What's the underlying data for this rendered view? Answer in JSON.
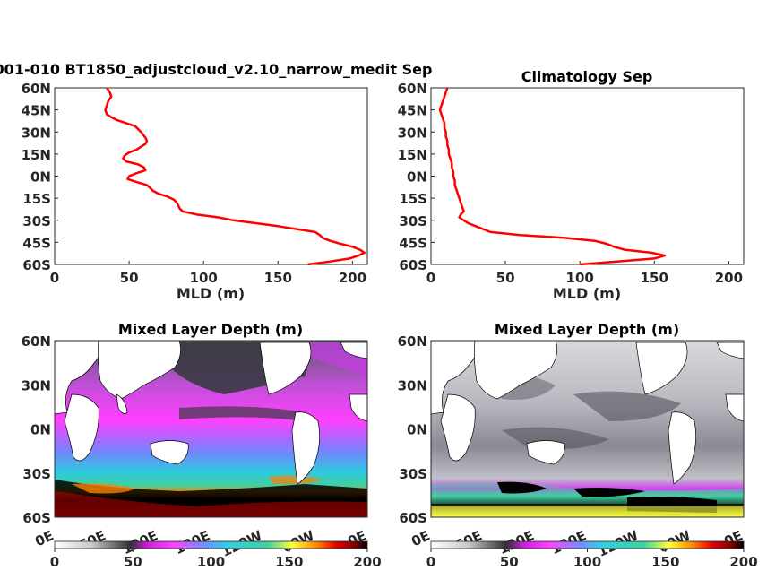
{
  "chart_data": [
    {
      "type": "line",
      "title": "001-010 BT1850_adjustcloud_v2.10_narrow_medit Sep",
      "xlabel": "MLD (m)",
      "ylabel": "",
      "xlim": [
        0,
        210
      ],
      "ylim": [
        -60,
        60
      ],
      "x_ticks": [
        "0",
        "50",
        "100",
        "150",
        "200"
      ],
      "y_ticks": [
        "60N",
        "45N",
        "30N",
        "15N",
        "0N",
        "15S",
        "30S",
        "45S",
        "60S"
      ],
      "line_color": "#ff0000",
      "series": [
        {
          "y": [
            60,
            57,
            54,
            51,
            48,
            45,
            42,
            40,
            38,
            36,
            34,
            30,
            26,
            24,
            22,
            20,
            18,
            16,
            14,
            12,
            10,
            8,
            6,
            4,
            2,
            0,
            -2,
            -4,
            -6,
            -8,
            -10,
            -12,
            -14,
            -16,
            -18,
            -20,
            -22,
            -24,
            -26,
            -28,
            -30,
            -34,
            -38,
            -40,
            -42,
            -44,
            -46,
            -48,
            -50,
            -52,
            -54,
            -56,
            -58,
            -60
          ],
          "x": [
            35,
            37,
            38,
            36,
            35,
            34,
            35,
            38,
            42,
            48,
            54,
            58,
            61,
            62,
            61,
            58,
            55,
            50,
            47,
            46,
            48,
            56,
            60,
            61,
            55,
            50,
            49,
            55,
            62,
            64,
            66,
            70,
            76,
            80,
            82,
            83,
            84,
            86,
            95,
            110,
            120,
            150,
            175,
            178,
            180,
            185,
            192,
            200,
            205,
            208,
            204,
            198,
            185,
            170
          ]
        }
      ]
    },
    {
      "type": "line",
      "title": "Climatology Sep",
      "xlabel": "MLD (m)",
      "ylabel": "",
      "xlim": [
        0,
        210
      ],
      "ylim": [
        -60,
        60
      ],
      "x_ticks": [
        "0",
        "50",
        "100",
        "150",
        "200"
      ],
      "y_ticks": [
        "60N",
        "45N",
        "30N",
        "15N",
        "0N",
        "15S",
        "30S",
        "45S",
        "60S"
      ],
      "line_color": "#ff0000",
      "series": [
        {
          "y": [
            60,
            57,
            54,
            51,
            48,
            45,
            42,
            39,
            36,
            33,
            30,
            27,
            24,
            21,
            18,
            15,
            12,
            9,
            6,
            3,
            0,
            -3,
            -6,
            -9,
            -12,
            -15,
            -18,
            -21,
            -24,
            -26,
            -28,
            -30,
            -32,
            -34,
            -36,
            -38,
            -40,
            -42,
            -44,
            -46,
            -48,
            -50,
            -52,
            -54,
            -56,
            -58,
            -60
          ],
          "x": [
            11,
            10,
            9,
            8,
            7,
            6,
            7,
            8,
            9,
            9,
            10,
            10,
            11,
            11,
            12,
            12,
            13,
            14,
            14,
            15,
            15,
            16,
            16,
            17,
            18,
            19,
            20,
            21,
            22,
            20,
            19,
            22,
            25,
            30,
            35,
            40,
            60,
            90,
            110,
            118,
            123,
            130,
            148,
            157,
            150,
            125,
            100
          ]
        }
      ]
    },
    {
      "type": "heatmap",
      "title": "Mixed Layer Depth (m)",
      "x_ticks": [
        "0E",
        "60E",
        "120E",
        "180E",
        "120W",
        "60W",
        "0E"
      ],
      "y_ticks": [
        "60N",
        "30N",
        "0N",
        "30S",
        "60S"
      ],
      "colorbar": {
        "ticks": [
          "0",
          "50",
          "100",
          "150",
          "200"
        ],
        "range": [
          0,
          200
        ]
      }
    },
    {
      "type": "heatmap",
      "title": "Mixed Layer Depth (m)",
      "x_ticks": [
        "0E",
        "60E",
        "120E",
        "180E",
        "120W",
        "60W",
        "0E"
      ],
      "y_ticks": [
        "60N",
        "30N",
        "0N",
        "30S",
        "60S"
      ],
      "colorbar": {
        "ticks": [
          "0",
          "50",
          "100",
          "150",
          "200"
        ],
        "range": [
          0,
          200
        ]
      }
    }
  ],
  "colormap": [
    "#ffffff",
    "#c8c8cc",
    "#303035",
    "#d020e0",
    "#ff40ff",
    "#7090ff",
    "#30d0e0",
    "#40d0a0",
    "#ffff40",
    "#ff8000",
    "#e00000",
    "#800000",
    "#000000"
  ]
}
